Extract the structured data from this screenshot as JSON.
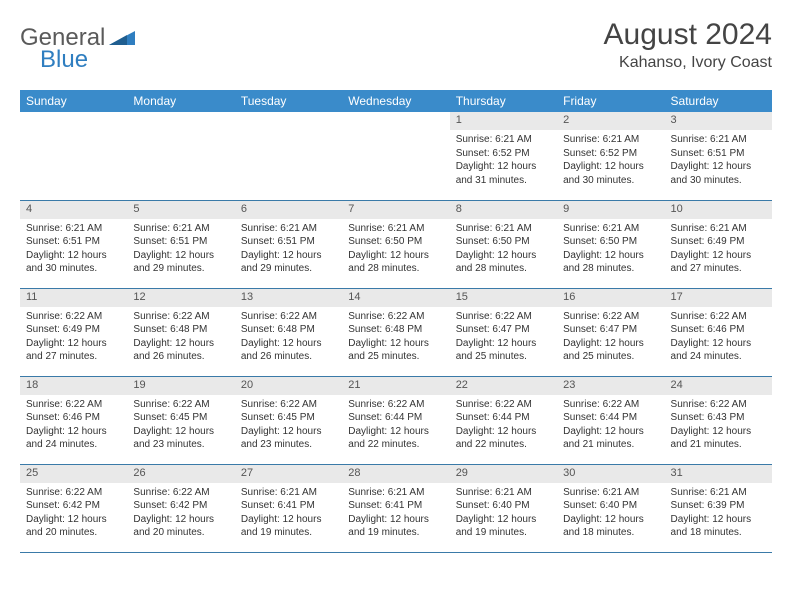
{
  "logo": {
    "text1": "General",
    "text2": "Blue"
  },
  "title": "August 2024",
  "location": "Kahanso, Ivory Coast",
  "colors": {
    "header_bg": "#3a8bca",
    "header_text": "#ffffff",
    "daynum_bg": "#e9e9e9",
    "row_divider": "#3a7aa8",
    "body_text": "#333333",
    "logo_gray": "#5a5a5a",
    "logo_blue": "#2f7ec0"
  },
  "weekdays": [
    "Sunday",
    "Monday",
    "Tuesday",
    "Wednesday",
    "Thursday",
    "Friday",
    "Saturday"
  ],
  "grid": {
    "first_weekday_index": 4,
    "days_in_month": 31
  },
  "days": {
    "1": {
      "sunrise": "6:21 AM",
      "sunset": "6:52 PM",
      "daylight": "12 hours and 31 minutes."
    },
    "2": {
      "sunrise": "6:21 AM",
      "sunset": "6:52 PM",
      "daylight": "12 hours and 30 minutes."
    },
    "3": {
      "sunrise": "6:21 AM",
      "sunset": "6:51 PM",
      "daylight": "12 hours and 30 minutes."
    },
    "4": {
      "sunrise": "6:21 AM",
      "sunset": "6:51 PM",
      "daylight": "12 hours and 30 minutes."
    },
    "5": {
      "sunrise": "6:21 AM",
      "sunset": "6:51 PM",
      "daylight": "12 hours and 29 minutes."
    },
    "6": {
      "sunrise": "6:21 AM",
      "sunset": "6:51 PM",
      "daylight": "12 hours and 29 minutes."
    },
    "7": {
      "sunrise": "6:21 AM",
      "sunset": "6:50 PM",
      "daylight": "12 hours and 28 minutes."
    },
    "8": {
      "sunrise": "6:21 AM",
      "sunset": "6:50 PM",
      "daylight": "12 hours and 28 minutes."
    },
    "9": {
      "sunrise": "6:21 AM",
      "sunset": "6:50 PM",
      "daylight": "12 hours and 28 minutes."
    },
    "10": {
      "sunrise": "6:21 AM",
      "sunset": "6:49 PM",
      "daylight": "12 hours and 27 minutes."
    },
    "11": {
      "sunrise": "6:22 AM",
      "sunset": "6:49 PM",
      "daylight": "12 hours and 27 minutes."
    },
    "12": {
      "sunrise": "6:22 AM",
      "sunset": "6:48 PM",
      "daylight": "12 hours and 26 minutes."
    },
    "13": {
      "sunrise": "6:22 AM",
      "sunset": "6:48 PM",
      "daylight": "12 hours and 26 minutes."
    },
    "14": {
      "sunrise": "6:22 AM",
      "sunset": "6:48 PM",
      "daylight": "12 hours and 25 minutes."
    },
    "15": {
      "sunrise": "6:22 AM",
      "sunset": "6:47 PM",
      "daylight": "12 hours and 25 minutes."
    },
    "16": {
      "sunrise": "6:22 AM",
      "sunset": "6:47 PM",
      "daylight": "12 hours and 25 minutes."
    },
    "17": {
      "sunrise": "6:22 AM",
      "sunset": "6:46 PM",
      "daylight": "12 hours and 24 minutes."
    },
    "18": {
      "sunrise": "6:22 AM",
      "sunset": "6:46 PM",
      "daylight": "12 hours and 24 minutes."
    },
    "19": {
      "sunrise": "6:22 AM",
      "sunset": "6:45 PM",
      "daylight": "12 hours and 23 minutes."
    },
    "20": {
      "sunrise": "6:22 AM",
      "sunset": "6:45 PM",
      "daylight": "12 hours and 23 minutes."
    },
    "21": {
      "sunrise": "6:22 AM",
      "sunset": "6:44 PM",
      "daylight": "12 hours and 22 minutes."
    },
    "22": {
      "sunrise": "6:22 AM",
      "sunset": "6:44 PM",
      "daylight": "12 hours and 22 minutes."
    },
    "23": {
      "sunrise": "6:22 AM",
      "sunset": "6:44 PM",
      "daylight": "12 hours and 21 minutes."
    },
    "24": {
      "sunrise": "6:22 AM",
      "sunset": "6:43 PM",
      "daylight": "12 hours and 21 minutes."
    },
    "25": {
      "sunrise": "6:22 AM",
      "sunset": "6:42 PM",
      "daylight": "12 hours and 20 minutes."
    },
    "26": {
      "sunrise": "6:22 AM",
      "sunset": "6:42 PM",
      "daylight": "12 hours and 20 minutes."
    },
    "27": {
      "sunrise": "6:21 AM",
      "sunset": "6:41 PM",
      "daylight": "12 hours and 19 minutes."
    },
    "28": {
      "sunrise": "6:21 AM",
      "sunset": "6:41 PM",
      "daylight": "12 hours and 19 minutes."
    },
    "29": {
      "sunrise": "6:21 AM",
      "sunset": "6:40 PM",
      "daylight": "12 hours and 19 minutes."
    },
    "30": {
      "sunrise": "6:21 AM",
      "sunset": "6:40 PM",
      "daylight": "12 hours and 18 minutes."
    },
    "31": {
      "sunrise": "6:21 AM",
      "sunset": "6:39 PM",
      "daylight": "12 hours and 18 minutes."
    }
  },
  "labels": {
    "sunrise_prefix": "Sunrise: ",
    "sunset_prefix": "Sunset: ",
    "daylight_prefix": "Daylight: "
  }
}
